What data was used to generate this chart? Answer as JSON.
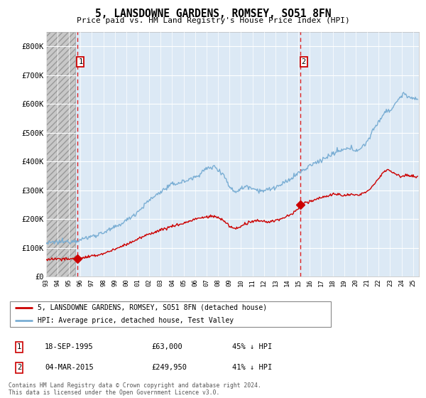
{
  "title": "5, LANSDOWNE GARDENS, ROMSEY, SO51 8FN",
  "subtitle": "Price paid vs. HM Land Registry's House Price Index (HPI)",
  "sale1_price": 63000,
  "sale1_pct": "45% ↓ HPI",
  "sale1_display": "18-SEP-1995",
  "sale2_price": 249950,
  "sale2_pct": "41% ↓ HPI",
  "sale2_display": "04-MAR-2015",
  "legend1": "5, LANSDOWNE GARDENS, ROMSEY, SO51 8FN (detached house)",
  "legend2": "HPI: Average price, detached house, Test Valley",
  "footer": "Contains HM Land Registry data © Crown copyright and database right 2024.\nThis data is licensed under the Open Government Licence v3.0.",
  "plot_bg": "#dce9f5",
  "grid_color": "#ffffff",
  "red_line_color": "#cc0000",
  "blue_line_color": "#7aaed4",
  "marker_color": "#cc0000",
  "dashed_line_color": "#dd2222",
  "ylim_min": 0,
  "ylim_max": 850000,
  "yticks": [
    0,
    100000,
    200000,
    300000,
    400000,
    500000,
    600000,
    700000,
    800000
  ],
  "ytick_labels": [
    "£0",
    "£100K",
    "£200K",
    "£300K",
    "£400K",
    "£500K",
    "£600K",
    "£700K",
    "£800K"
  ],
  "xstart": 1993.0,
  "xend": 2025.5,
  "hatch_xend": 1995.58,
  "sale1_x": 1995.71,
  "sale2_x": 2015.17
}
